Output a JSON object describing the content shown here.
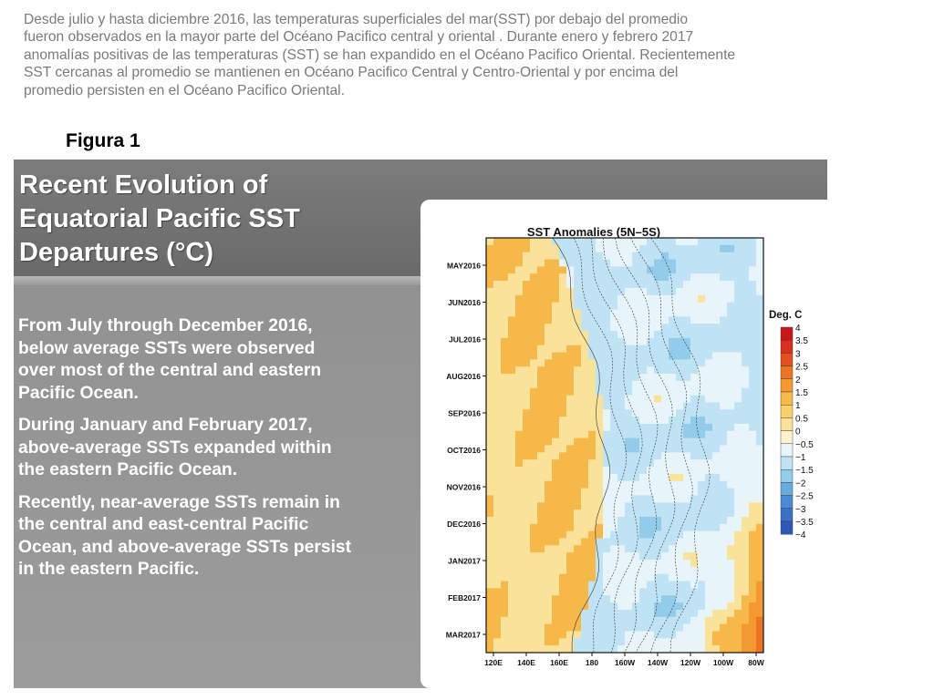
{
  "intro": {
    "lines": [
      "Desde julio y hasta diciembre 2016, las temperaturas superficiales del mar(SST) por debajo del promedio",
      "fueron observados en la mayor parte del Océano Pacifico  central y oriental .  Durante enero  y febrero 2017",
      "anomalías positivas de las temperaturas (SST) se han expandido en el Océano Pacifico Oriental. Recientemente",
      "SST cercanas al promedio  se mantienen  en Océano Pacifico Central y Centro-Oriental y por encima del",
      "promedio persisten en el Océano Pacifico Oriental."
    ]
  },
  "figure_label": "Figura 1",
  "slide": {
    "title_lines": [
      "Recent Evolution of",
      "Equatorial Pacific SST",
      "Departures (°C)"
    ],
    "bullets": [
      [
        "From July through December 2016,",
        "below average SSTs were observed",
        "over most of the central and eastern",
        "Pacific Ocean."
      ],
      [
        "During January and February 2017,",
        "above-average SSTs expanded within",
        "the eastern Pacific Ocean."
      ],
      [
        "Recently, near-average SSTs remain in",
        "the central and east-central Pacific",
        "Ocean, and above-average SSTs persist",
        "in the eastern Pacific."
      ]
    ]
  },
  "chart_data": {
    "type": "heatmap",
    "title": "SST Anomalies (5N–5S)",
    "x_ticks": [
      "120E",
      "140E",
      "160E",
      "180",
      "160W",
      "140W",
      "120W",
      "100W",
      "80W"
    ],
    "y_ticks": [
      "MAY2016",
      "JUN2016",
      "JUL2016",
      "AUG2016",
      "SEP2016",
      "OCT2016",
      "NOV2016",
      "DEC2016",
      "JAN2017",
      "FEB2017",
      "MAR2017"
    ],
    "colorbar": {
      "title": "Deg. C",
      "levels": [
        "4",
        "3.5",
        "3",
        "2.5",
        "2",
        "1.5",
        "1",
        "0.5",
        "0",
        "−0.5",
        "−1",
        "−1.5",
        "−2",
        "−2.5",
        "−3",
        "−3.5",
        "−4"
      ],
      "colors": [
        "#c6181c",
        "#d8301c",
        "#e34f1f",
        "#ec7524",
        "#f29a30",
        "#f6b848",
        "#f9d06a",
        "#fbe29a",
        "#fff2cc",
        "#e7f5fb",
        "#bfe3f4",
        "#93cbea",
        "#68acde",
        "#4a8cd3",
        "#3a70c6",
        "#2d58b8"
      ]
    }
  }
}
